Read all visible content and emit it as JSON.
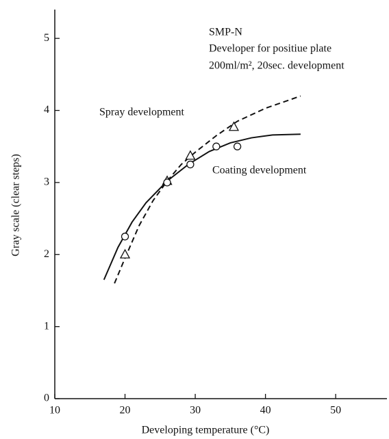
{
  "chart_data": {
    "type": "scatter_fit",
    "x_label": "Developing temperature (°C)",
    "y_label": "Gray scale (clear steps)",
    "annotations": [
      "SMP-N",
      "Developer for positiue plate",
      "200ml/m², 20sec. development"
    ],
    "xlim": [
      10,
      57.3
    ],
    "xticks": [
      10,
      20,
      30,
      40,
      50
    ],
    "ylim": [
      0,
      5.4
    ],
    "yticks": [
      0,
      1,
      2,
      3,
      4,
      5
    ],
    "series": [
      {
        "name": "Spray development",
        "color": "#111111",
        "style": "dashed",
        "marker": "triangle",
        "x": [
          20,
          26,
          29.3,
          35.5
        ],
        "values": [
          2.0,
          3.02,
          3.37,
          3.77
        ],
        "fit_x": [
          18.5,
          20,
          22,
          24,
          26,
          28,
          30,
          33,
          36,
          40,
          45
        ],
        "fit_values": [
          1.6,
          1.95,
          2.4,
          2.75,
          3.02,
          3.25,
          3.42,
          3.65,
          3.85,
          4.03,
          4.2
        ]
      },
      {
        "name": "Coating development",
        "color": "#111111",
        "style": "solid",
        "marker": "circle",
        "x": [
          20,
          26,
          29.3,
          33,
          36
        ],
        "values": [
          2.25,
          3.0,
          3.25,
          3.5,
          3.5
        ],
        "fit_x": [
          17,
          19,
          21,
          23,
          26,
          29,
          32,
          35,
          38,
          41,
          45
        ],
        "fit_values": [
          1.65,
          2.1,
          2.45,
          2.72,
          3.02,
          3.25,
          3.43,
          3.55,
          3.62,
          3.66,
          3.67
        ]
      }
    ]
  }
}
